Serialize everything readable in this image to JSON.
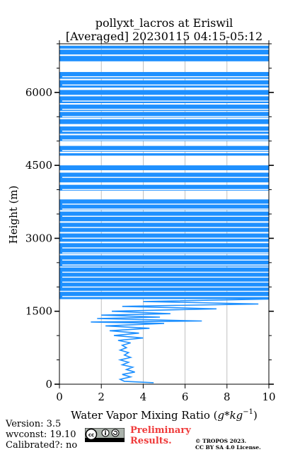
{
  "chart_data": {
    "type": "line",
    "title": "pollyxt_lacros at Eriswil",
    "subtitle": "[Averaged] 20230115 04:15-05:12",
    "xlabel": "Water Vapor Mixing Ratio (g*kg^-1)",
    "xlabel_main": "Water Vapor Mixing Ratio (",
    "xlabel_unit_g": "g",
    "xlabel_unit_mul": "*",
    "xlabel_unit_kg": "kg",
    "xlabel_unit_exp": "−1",
    "xlabel_close": ")",
    "ylabel": "Height (m)",
    "xlim": [
      0,
      10
    ],
    "ylim": [
      0,
      7000
    ],
    "xticks": [
      "0",
      "2",
      "4",
      "6",
      "8",
      "10"
    ],
    "yticks": [
      "0",
      "1500",
      "3000",
      "4500",
      "6000"
    ],
    "grid": "vertical",
    "series": [
      {
        "color": "#1e90ff",
        "values_description": "profile",
        "points": [
          [
            4.5,
            30
          ],
          [
            3.1,
            60
          ],
          [
            2.9,
            100
          ],
          [
            3.4,
            150
          ],
          [
            3.0,
            200
          ],
          [
            3.6,
            250
          ],
          [
            3.2,
            300
          ],
          [
            3.5,
            350
          ],
          [
            3.0,
            400
          ],
          [
            3.3,
            450
          ],
          [
            2.9,
            500
          ],
          [
            3.4,
            550
          ],
          [
            3.1,
            600
          ],
          [
            3.3,
            650
          ],
          [
            2.9,
            700
          ],
          [
            3.2,
            750
          ],
          [
            3.0,
            800
          ],
          [
            3.4,
            850
          ],
          [
            2.8,
            900
          ],
          [
            4.0,
            950
          ],
          [
            2.6,
            1000
          ],
          [
            3.8,
            1050
          ],
          [
            2.4,
            1100
          ],
          [
            4.3,
            1150
          ],
          [
            2.2,
            1200
          ],
          [
            5.0,
            1250
          ],
          [
            1.5,
            1280
          ],
          [
            6.8,
            1300
          ],
          [
            1.8,
            1350
          ],
          [
            4.8,
            1380
          ],
          [
            2.0,
            1420
          ],
          [
            5.3,
            1450
          ],
          [
            2.5,
            1500
          ],
          [
            7.5,
            1550
          ],
          [
            3.0,
            1600
          ],
          [
            9.5,
            1650
          ],
          [
            4.0,
            1700
          ],
          [
            10.0,
            1750
          ]
        ]
      }
    ]
  },
  "footer": {
    "version": "Version: 3.5",
    "wvconst": "wvconst:  19.10",
    "calibrated": "Calibrated?: no",
    "preliminary_1": "Preliminary",
    "preliminary_2": "Results.",
    "copyright_1": "© TROPOS 2023.",
    "copyright_2": "CC BY SA 4.0 License."
  },
  "colors": {
    "profile": "#1e90ff",
    "grid": "#b0b0b0",
    "warning": "#ef3a3a"
  }
}
